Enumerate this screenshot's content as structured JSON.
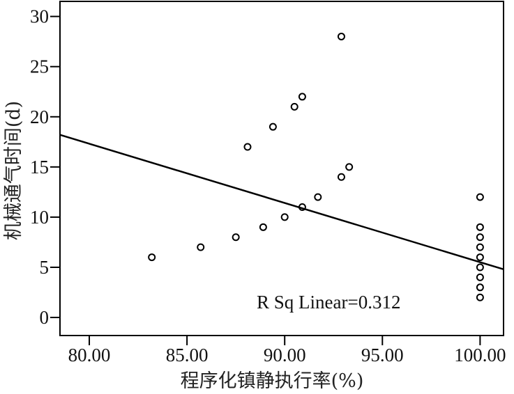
{
  "chart_data": {
    "type": "scatter",
    "xlabel": "程序化镇静执行率(%)",
    "ylabel": "机械通气时间(d)",
    "xlim": [
      78.5,
      101.2
    ],
    "ylim": [
      -1.8,
      31.5
    ],
    "x_ticks": [
      80,
      85,
      90,
      95,
      100
    ],
    "x_tick_labels": [
      "80.00",
      "85.00",
      "90.00",
      "95.00",
      "100.00"
    ],
    "y_ticks": [
      0,
      5,
      10,
      15,
      20,
      25,
      30
    ],
    "y_tick_labels": [
      "0",
      "5",
      "10",
      "15",
      "20",
      "25",
      "30"
    ],
    "points": [
      {
        "x": 83.2,
        "y": 6
      },
      {
        "x": 85.7,
        "y": 7
      },
      {
        "x": 87.5,
        "y": 8
      },
      {
        "x": 88.1,
        "y": 17
      },
      {
        "x": 88.9,
        "y": 9
      },
      {
        "x": 89.4,
        "y": 19
      },
      {
        "x": 90.0,
        "y": 10
      },
      {
        "x": 90.5,
        "y": 21
      },
      {
        "x": 90.9,
        "y": 11
      },
      {
        "x": 90.9,
        "y": 22
      },
      {
        "x": 91.7,
        "y": 12
      },
      {
        "x": 92.9,
        "y": 14
      },
      {
        "x": 92.9,
        "y": 28
      },
      {
        "x": 93.3,
        "y": 15
      },
      {
        "x": 100.0,
        "y": 2
      },
      {
        "x": 100.0,
        "y": 3
      },
      {
        "x": 100.0,
        "y": 4
      },
      {
        "x": 100.0,
        "y": 5
      },
      {
        "x": 100.0,
        "y": 6
      },
      {
        "x": 100.0,
        "y": 7
      },
      {
        "x": 100.0,
        "y": 8
      },
      {
        "x": 100.0,
        "y": 9
      },
      {
        "x": 100.0,
        "y": 12
      }
    ],
    "fit_line": {
      "x": [
        78.5,
        101.2
      ],
      "y": [
        18.2,
        4.8
      ]
    },
    "annotation": "R Sq Linear=0.312",
    "grid": false,
    "legend": false
  }
}
